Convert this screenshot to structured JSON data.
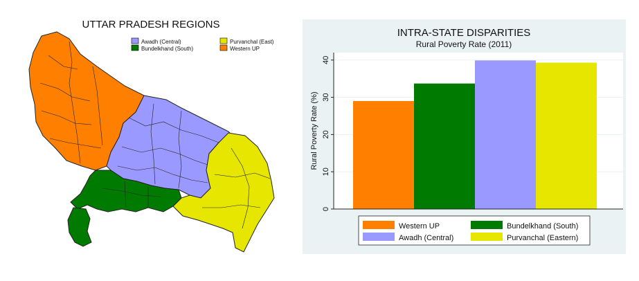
{
  "map": {
    "title": "UTTAR PRADESH REGIONS",
    "legend": [
      {
        "label": "Awadh (Central)",
        "color": "#9999ff"
      },
      {
        "label": "Purvanchal (East)",
        "color": "#e6e600"
      },
      {
        "label": "Bundelkhand (South)",
        "color": "#007a00"
      },
      {
        "label": "Western UP",
        "color": "#ff7f00"
      }
    ]
  },
  "chart_data": {
    "type": "bar",
    "title": "INTRA-STATE DISPARITIES",
    "subtitle": "Rural Poverty Rate (2011)",
    "ylabel": "Rural Poverty Rate (%)",
    "xlabel": "",
    "ylim": [
      0,
      42
    ],
    "yticks": [
      0,
      10,
      20,
      30,
      40
    ],
    "grid": true,
    "legend_position": "bottom",
    "series": [
      {
        "name": "Western UP",
        "value": 29,
        "color": "#ff7f00"
      },
      {
        "name": "Bundelkhand (South)",
        "value": 33.7,
        "color": "#007a00"
      },
      {
        "name": "Awadh (Central)",
        "value": 39.9,
        "color": "#9999ff"
      },
      {
        "name": "Purvanchal (Eastern)",
        "value": 39.3,
        "color": "#e6e600"
      }
    ],
    "legend_order": [
      "Western UP",
      "Bundelkhand (South)",
      "Awadh (Central)",
      "Purvanchal (Eastern)"
    ]
  }
}
